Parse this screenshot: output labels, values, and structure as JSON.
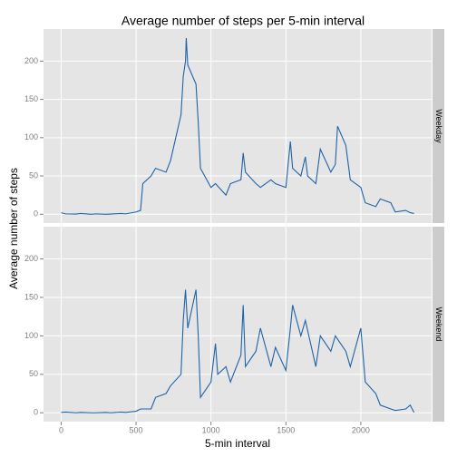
{
  "title": "Average number of steps per 5-min interval",
  "x_label": "5-min interval",
  "y_label": "Average number of steps",
  "chart_data": [
    {
      "type": "line",
      "facet": "Weekday",
      "color": "#1f63a8",
      "x": [
        0,
        30,
        100,
        130,
        200,
        230,
        300,
        330,
        400,
        430,
        500,
        530,
        545,
        600,
        630,
        700,
        730,
        800,
        815,
        830,
        835,
        845,
        900,
        915,
        930,
        1000,
        1030,
        1100,
        1130,
        1200,
        1215,
        1230,
        1300,
        1330,
        1400,
        1430,
        1500,
        1530,
        1545,
        1600,
        1630,
        1645,
        1700,
        1730,
        1800,
        1830,
        1845,
        1900,
        1930,
        2000,
        2030,
        2100,
        2130,
        2200,
        2230,
        2300,
        2330,
        2355
      ],
      "values": [
        2,
        0.5,
        0.3,
        1,
        0,
        0.5,
        0,
        0.3,
        1,
        0.5,
        3,
        5,
        40,
        50,
        60,
        55,
        70,
        130,
        180,
        200,
        230,
        195,
        170,
        120,
        60,
        35,
        40,
        25,
        40,
        45,
        80,
        55,
        40,
        35,
        45,
        40,
        35,
        95,
        60,
        50,
        75,
        50,
        40,
        85,
        55,
        65,
        115,
        90,
        45,
        35,
        15,
        10,
        20,
        15,
        3,
        5,
        2,
        1
      ],
      "xlim": [
        -117.75,
        2472.75
      ],
      "xticks": [
        0,
        500,
        1000,
        1500,
        2000
      ],
      "ylim": [
        -11.5,
        241.9
      ],
      "yticks": [
        0,
        50,
        100,
        150,
        200
      ]
    },
    {
      "type": "line",
      "facet": "Weekend",
      "color": "#1f63a8",
      "x": [
        0,
        30,
        100,
        130,
        200,
        230,
        300,
        330,
        400,
        430,
        500,
        530,
        600,
        630,
        700,
        730,
        800,
        815,
        830,
        845,
        900,
        915,
        930,
        1000,
        1030,
        1045,
        1100,
        1130,
        1200,
        1215,
        1230,
        1300,
        1330,
        1400,
        1430,
        1500,
        1530,
        1545,
        1600,
        1630,
        1700,
        1730,
        1800,
        1830,
        1900,
        1930,
        2000,
        2030,
        2100,
        2130,
        2200,
        2230,
        2300,
        2330,
        2355
      ],
      "values": [
        0.5,
        1,
        0,
        0.5,
        0,
        0,
        0.5,
        0,
        1,
        0.5,
        2,
        5,
        5,
        20,
        25,
        35,
        50,
        120,
        160,
        110,
        160,
        100,
        20,
        40,
        90,
        50,
        60,
        40,
        75,
        140,
        60,
        80,
        110,
        60,
        85,
        55,
        110,
        140,
        100,
        120,
        60,
        100,
        80,
        100,
        80,
        60,
        110,
        40,
        25,
        10,
        5,
        3,
        5,
        10,
        0.5
      ],
      "xlim": [
        -117.75,
        2472.75
      ],
      "xticks": [
        0,
        500,
        1000,
        1500,
        2000
      ],
      "ylim": [
        -11.5,
        241.9
      ],
      "yticks": [
        0,
        50,
        100,
        150,
        200
      ]
    }
  ]
}
